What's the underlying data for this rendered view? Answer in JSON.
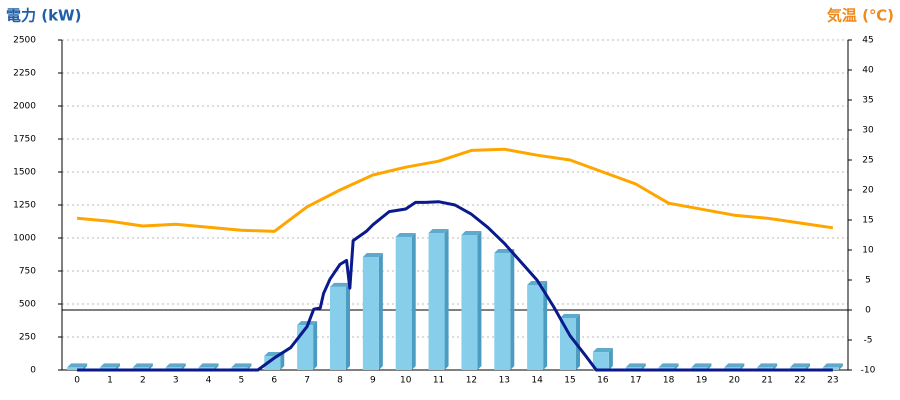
{
  "chart_data": {
    "type": "bar",
    "title": "電力 (kW)",
    "y2_title": "気温 (℃)",
    "title_color": "#1f5fa8",
    "y2_title_color": "#f08a1c",
    "categories": [
      "0",
      "1",
      "2",
      "3",
      "4",
      "5",
      "6",
      "7",
      "8",
      "9",
      "10",
      "11",
      "12",
      "13",
      "14",
      "15",
      "16",
      "17",
      "18",
      "19",
      "20",
      "21",
      "22",
      "23"
    ],
    "xlim": [
      -0.46,
      23.46
    ],
    "ylim": [
      0,
      2500
    ],
    "yticks": [
      0,
      250,
      500,
      750,
      1000,
      1250,
      1500,
      1750,
      2000,
      2250,
      2500
    ],
    "y2lim": [
      -10,
      45
    ],
    "y2ticks": [
      -10,
      -5,
      0,
      5,
      10,
      15,
      20,
      25,
      30,
      35,
      40,
      45
    ],
    "grid": true,
    "series": [
      {
        "type": "bar",
        "color": "#87ceeb",
        "values": [
          20,
          20,
          20,
          20,
          20,
          20,
          106,
          340,
          630,
          856,
          1008,
          1038,
          1023,
          886,
          644,
          394,
          136,
          20,
          20,
          20,
          20,
          20,
          20,
          20
        ]
      },
      {
        "type": "line",
        "color": "#0a1a8c",
        "x": [
          0,
          5.5,
          6,
          6.5,
          7,
          7.2,
          7.4,
          7.5,
          7.7,
          8,
          8.2,
          8.3,
          8.4,
          8.8,
          9,
          9.5,
          10,
          10.3,
          10.6,
          11,
          11.5,
          12,
          12.5,
          13,
          13.5,
          14,
          14.5,
          15,
          15.5,
          15.8,
          23
        ],
        "values": [
          0,
          0,
          91,
          170,
          330,
          460,
          470,
          580,
          690,
          800,
          830,
          620,
          980,
          1050,
          1100,
          1200,
          1220,
          1270,
          1270,
          1275,
          1250,
          1180,
          1080,
          960,
          820,
          680,
          480,
          260,
          100,
          0,
          0
        ]
      },
      {
        "type": "line",
        "axis": "y2",
        "color": "#ffa500",
        "values": [
          15.3,
          14.8,
          14,
          14.3,
          13.8,
          13.3,
          13.1,
          17.2,
          20,
          22.5,
          23.8,
          24.8,
          26.6,
          26.8,
          25.8,
          25,
          23,
          21,
          17.8,
          16.8,
          15.8,
          15.3,
          14.5,
          13.7
        ]
      }
    ]
  }
}
